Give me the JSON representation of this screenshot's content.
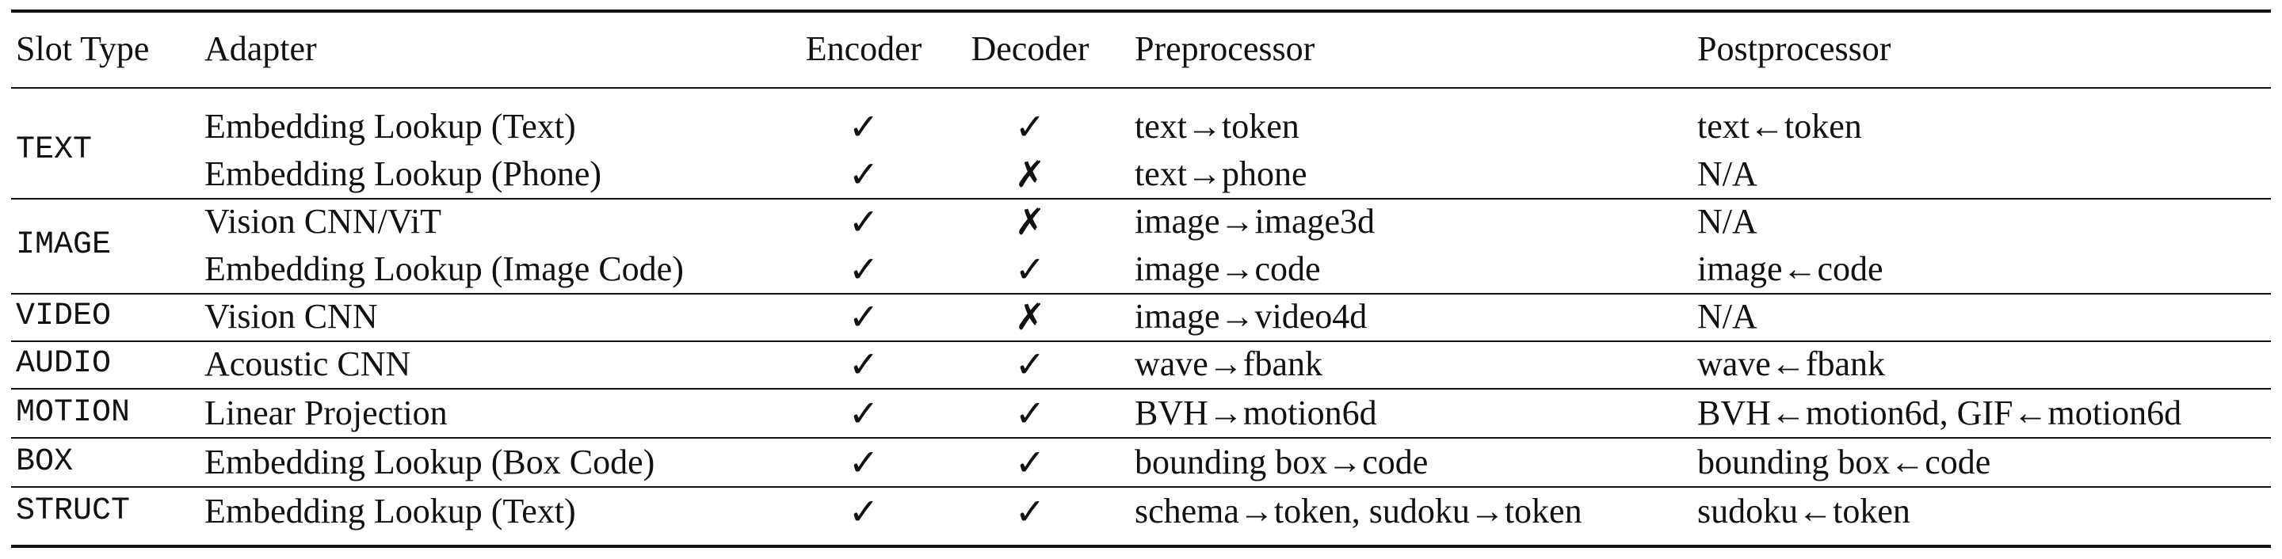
{
  "headers": {
    "slot_type": "Slot Type",
    "adapter": "Adapter",
    "encoder": "Encoder",
    "decoder": "Decoder",
    "preprocessor": "Preprocessor",
    "postprocessor": "Postprocessor"
  },
  "rows": [
    {
      "slot": "TEXT",
      "adapter": "Embedding Lookup (Text)",
      "encoder": "✓",
      "decoder": "✓",
      "pre": "text→token",
      "post": "text←token"
    },
    {
      "slot": "",
      "adapter": "Embedding Lookup (Phone)",
      "encoder": "✓",
      "decoder": "✗",
      "pre": "text→phone",
      "post": "N/A"
    },
    {
      "slot": "IMAGE",
      "adapter": "Vision CNN/ViT",
      "encoder": "✓",
      "decoder": "✗",
      "pre": "image→image3d",
      "post": "N/A"
    },
    {
      "slot": "",
      "adapter": "Embedding Lookup (Image Code)",
      "encoder": "✓",
      "decoder": "✓",
      "pre": "image→code",
      "post": "image←code"
    },
    {
      "slot": "VIDEO",
      "adapter": "Vision CNN",
      "encoder": "✓",
      "decoder": "✗",
      "pre": "image→video4d",
      "post": "N/A"
    },
    {
      "slot": "AUDIO",
      "adapter": "Acoustic CNN",
      "encoder": "✓",
      "decoder": "✓",
      "pre": "wave→fbank",
      "post": "wave←fbank"
    },
    {
      "slot": "MOTION",
      "adapter": "Linear Projection",
      "encoder": "✓",
      "decoder": "✓",
      "pre": "BVH→motion6d",
      "post": "BVH←motion6d, GIF←motion6d"
    },
    {
      "slot": "BOX",
      "adapter": "Embedding Lookup (Box Code)",
      "encoder": "✓",
      "decoder": "✓",
      "pre": "bounding box→code",
      "post": "bounding box←code"
    },
    {
      "slot": "STRUCT",
      "adapter": "Embedding Lookup (Text)",
      "encoder": "✓",
      "decoder": "✓",
      "pre": "schema→token, sudoku→token",
      "post": "sudoku←token"
    }
  ]
}
